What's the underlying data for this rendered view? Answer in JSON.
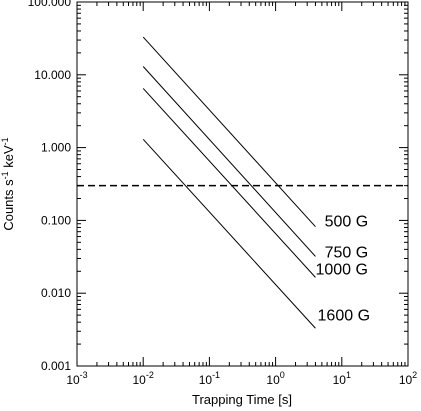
{
  "chart_data": {
    "type": "line",
    "xlabel": "Trapping Time [s]",
    "ylabel": {
      "prefix": "Counts s",
      "sup1": "-1",
      "mid": " keV",
      "sup2": "-1"
    },
    "x_scale": "log",
    "y_scale": "log",
    "xlim": [
      0.001,
      100
    ],
    "ylim": [
      0.001,
      100
    ],
    "x_ticks": [
      {
        "value": 0.001,
        "base": "10",
        "exp": "-3"
      },
      {
        "value": 0.01,
        "base": "10",
        "exp": "-2"
      },
      {
        "value": 0.1,
        "base": "10",
        "exp": "-1"
      },
      {
        "value": 1,
        "base": "10",
        "exp": "0"
      },
      {
        "value": 10,
        "base": "10",
        "exp": "1"
      },
      {
        "value": 100,
        "base": "10",
        "exp": "2"
      }
    ],
    "y_ticks": [
      {
        "value": 0.001,
        "label": "0.001"
      },
      {
        "value": 0.01,
        "label": "0.010"
      },
      {
        "value": 0.1,
        "label": "0.100"
      },
      {
        "value": 1,
        "label": "1.000"
      },
      {
        "value": 10,
        "label": "10.000"
      },
      {
        "value": 100,
        "label": "100.000"
      }
    ],
    "grid": false,
    "series": [
      {
        "name": "500 G",
        "x": [
          0.01,
          4
        ],
        "y": [
          33,
          0.082
        ]
      },
      {
        "name": "750 G",
        "x": [
          0.01,
          4
        ],
        "y": [
          13,
          0.032
        ]
      },
      {
        "name": "1000 G",
        "x": [
          0.01,
          4
        ],
        "y": [
          6.5,
          0.0165
        ]
      },
      {
        "name": "1600 G",
        "x": [
          0.01,
          4
        ],
        "y": [
          1.3,
          0.0033
        ]
      }
    ],
    "hline": {
      "y": 0.3,
      "style": "dashed"
    },
    "series_labels": [
      {
        "text": "500 G",
        "x": 5.5,
        "y": 0.083
      },
      {
        "text": "750 G",
        "x": 5.5,
        "y": 0.031
      },
      {
        "text": "1000 G",
        "x": 4.0,
        "y": 0.018
      },
      {
        "text": "1600 G",
        "x": 4.3,
        "y": 0.0042
      }
    ]
  }
}
